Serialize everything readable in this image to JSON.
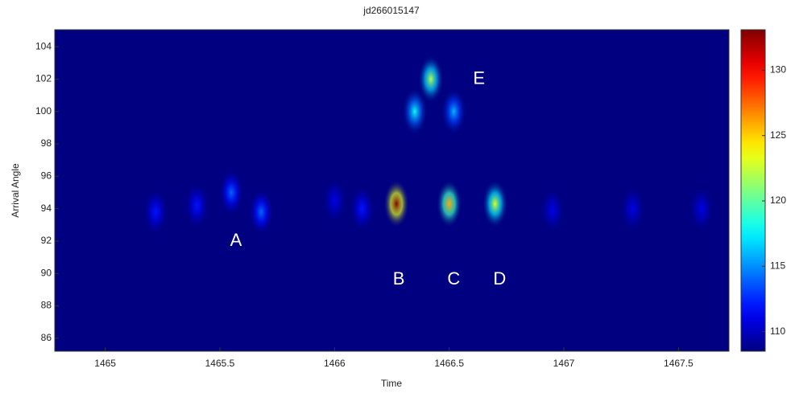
{
  "chart_data": {
    "type": "heatmap",
    "title": "jd266015147",
    "x_label": "Time",
    "y_label": "Arrival Angle",
    "xlim": [
      1464.78,
      1467.72
    ],
    "ylim": [
      85.2,
      105.05
    ],
    "xticks": [
      1465,
      1465.5,
      1466,
      1466.5,
      1467,
      1467.5
    ],
    "yticks": [
      86,
      88,
      90,
      92,
      94,
      96,
      98,
      100,
      102,
      104
    ],
    "clim": [
      108.5,
      133.1
    ],
    "cticks": [
      110,
      115,
      120,
      125,
      130
    ],
    "colormap": "jet",
    "peaks": [
      {
        "x": 1465.22,
        "y": 93.8,
        "value": 112
      },
      {
        "x": 1465.4,
        "y": 94.2,
        "value": 112
      },
      {
        "x": 1465.55,
        "y": 95,
        "value": 114
      },
      {
        "x": 1465.68,
        "y": 93.8,
        "value": 114
      },
      {
        "x": 1466.0,
        "y": 94.5,
        "value": 111
      },
      {
        "x": 1466.12,
        "y": 94,
        "value": 112
      },
      {
        "x": 1466.27,
        "y": 94.3,
        "value": 133
      },
      {
        "x": 1466.35,
        "y": 100,
        "value": 118
      },
      {
        "x": 1466.42,
        "y": 102,
        "value": 122
      },
      {
        "x": 1466.52,
        "y": 100,
        "value": 116
      },
      {
        "x": 1466.5,
        "y": 94.3,
        "value": 126
      },
      {
        "x": 1466.7,
        "y": 94.3,
        "value": 123
      },
      {
        "x": 1466.95,
        "y": 93.9,
        "value": 111
      },
      {
        "x": 1467.3,
        "y": 94,
        "value": 111
      },
      {
        "x": 1467.6,
        "y": 94,
        "value": 111
      }
    ],
    "annotations": [
      {
        "text": "A",
        "x": 1465.57,
        "y": 92
      },
      {
        "text": "B",
        "x": 1466.28,
        "y": 89.6
      },
      {
        "text": "C",
        "x": 1466.52,
        "y": 89.6
      },
      {
        "text": "D",
        "x": 1466.72,
        "y": 89.6
      },
      {
        "text": "E",
        "x": 1466.63,
        "y": 102
      }
    ]
  }
}
